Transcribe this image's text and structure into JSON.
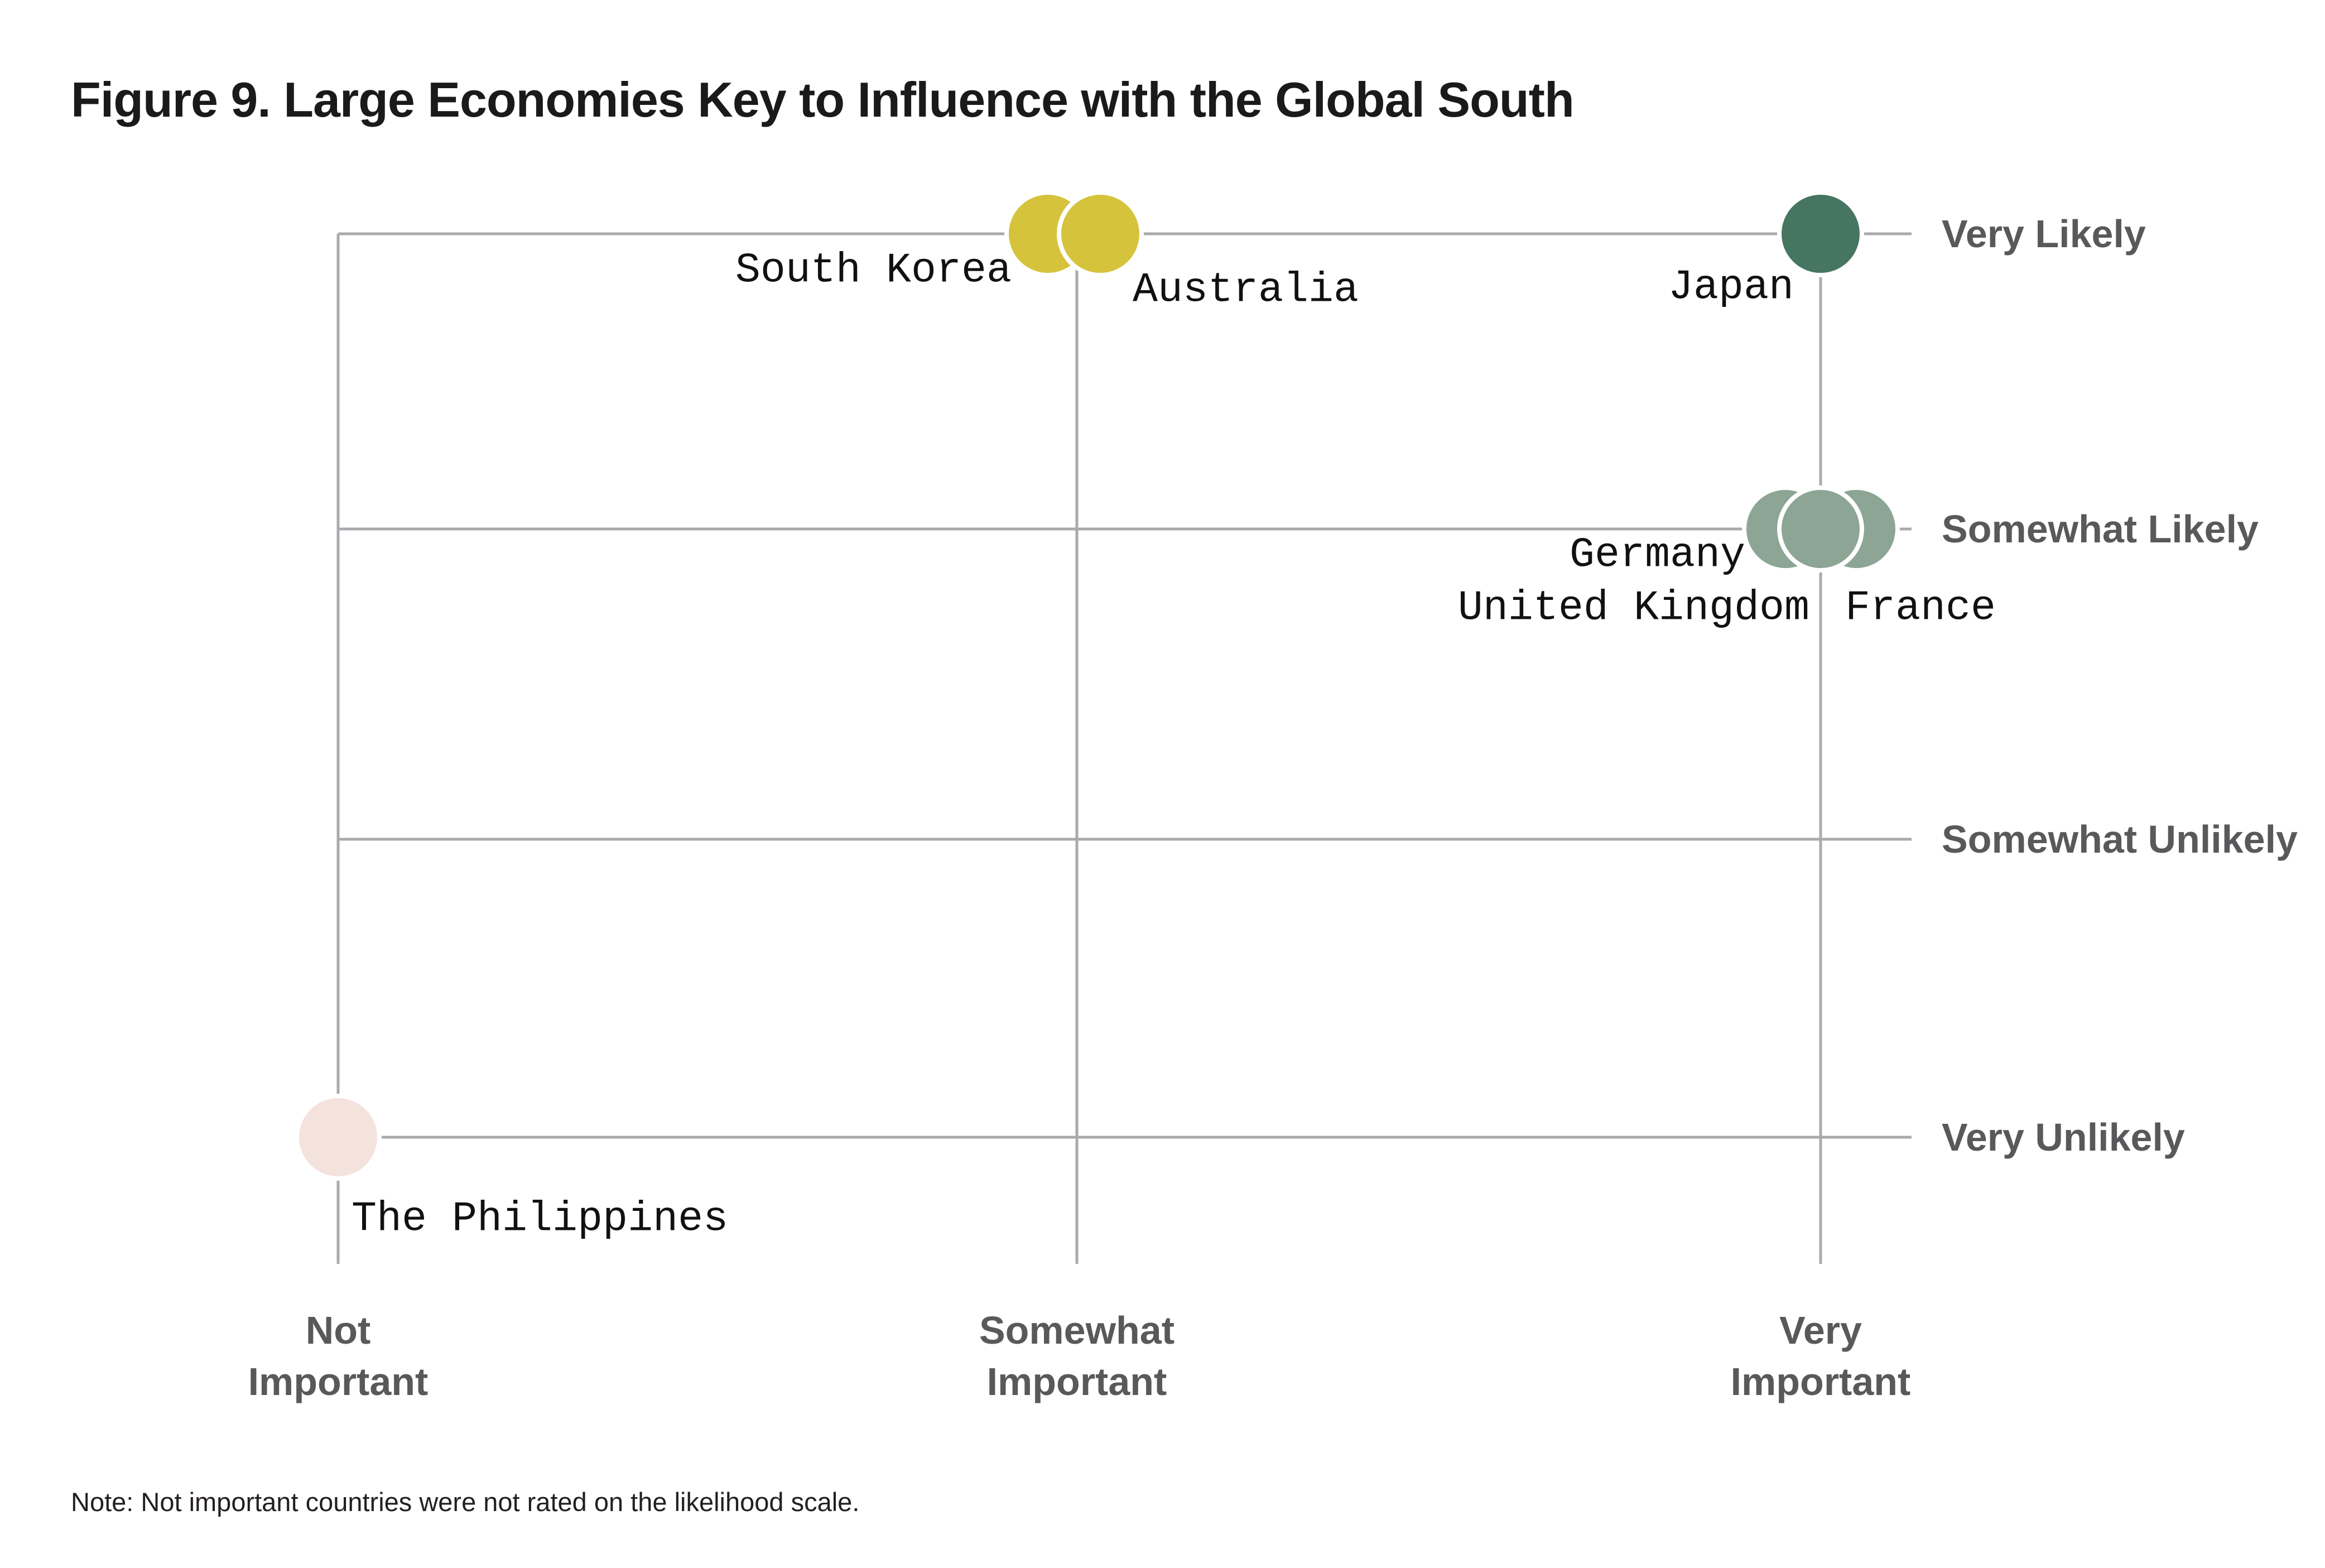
{
  "title": "Figure 9. Large Economies Key to Influence with the Global South",
  "note": "Note: Not important countries were not rated on the likelihood scale.",
  "x_axis": {
    "labels": [
      "Not\nImportant",
      "Somewhat\nImportant",
      "Very\nImportant"
    ]
  },
  "y_axis": {
    "labels": [
      "Very Likely",
      "Somewhat Likely",
      "Somewhat Unlikely",
      "Very Unlikely"
    ]
  },
  "colors": {
    "gridline": "#A9AAAD",
    "axis_text": "#58595B",
    "title_text": "#1A1A1A",
    "label_text": "#111111",
    "yellow": "#D6C33C",
    "dark_green": "#467561",
    "sage_green": "#8CA594",
    "blush_pink": "#F4E2DD"
  },
  "chart_data": {
    "type": "scatter",
    "title": "Figure 9. Large Economies Key to Influence with the Global South",
    "x_categories": [
      "Not Important",
      "Somewhat Important",
      "Very Important"
    ],
    "y_categories": [
      "Very Likely",
      "Somewhat Likely",
      "Somewhat Unlikely",
      "Very Unlikely"
    ],
    "legend": "none",
    "grid": "on",
    "annotation": "Note: Not important countries were not rated on the likelihood scale.",
    "points": [
      {
        "label": "South Korea",
        "importance": "Somewhat Important",
        "likelihood": "Very Likely",
        "color": "#D6C33C"
      },
      {
        "label": "Australia",
        "importance": "Somewhat Important",
        "likelihood": "Very Likely",
        "color": "#D6C33C"
      },
      {
        "label": "Japan",
        "importance": "Very Important",
        "likelihood": "Very Likely",
        "color": "#467561"
      },
      {
        "label": "Germany",
        "importance": "Very Important",
        "likelihood": "Somewhat Likely",
        "color": "#8CA594"
      },
      {
        "label": "United Kingdom",
        "importance": "Very Important",
        "likelihood": "Somewhat Likely",
        "color": "#8CA594"
      },
      {
        "label": "France",
        "importance": "Very Important",
        "likelihood": "Somewhat Likely",
        "color": "#8CA594"
      },
      {
        "label": "The Philippines",
        "importance": "Not Important",
        "likelihood": "Very Unlikely",
        "color": "#F4E2DD"
      }
    ]
  }
}
